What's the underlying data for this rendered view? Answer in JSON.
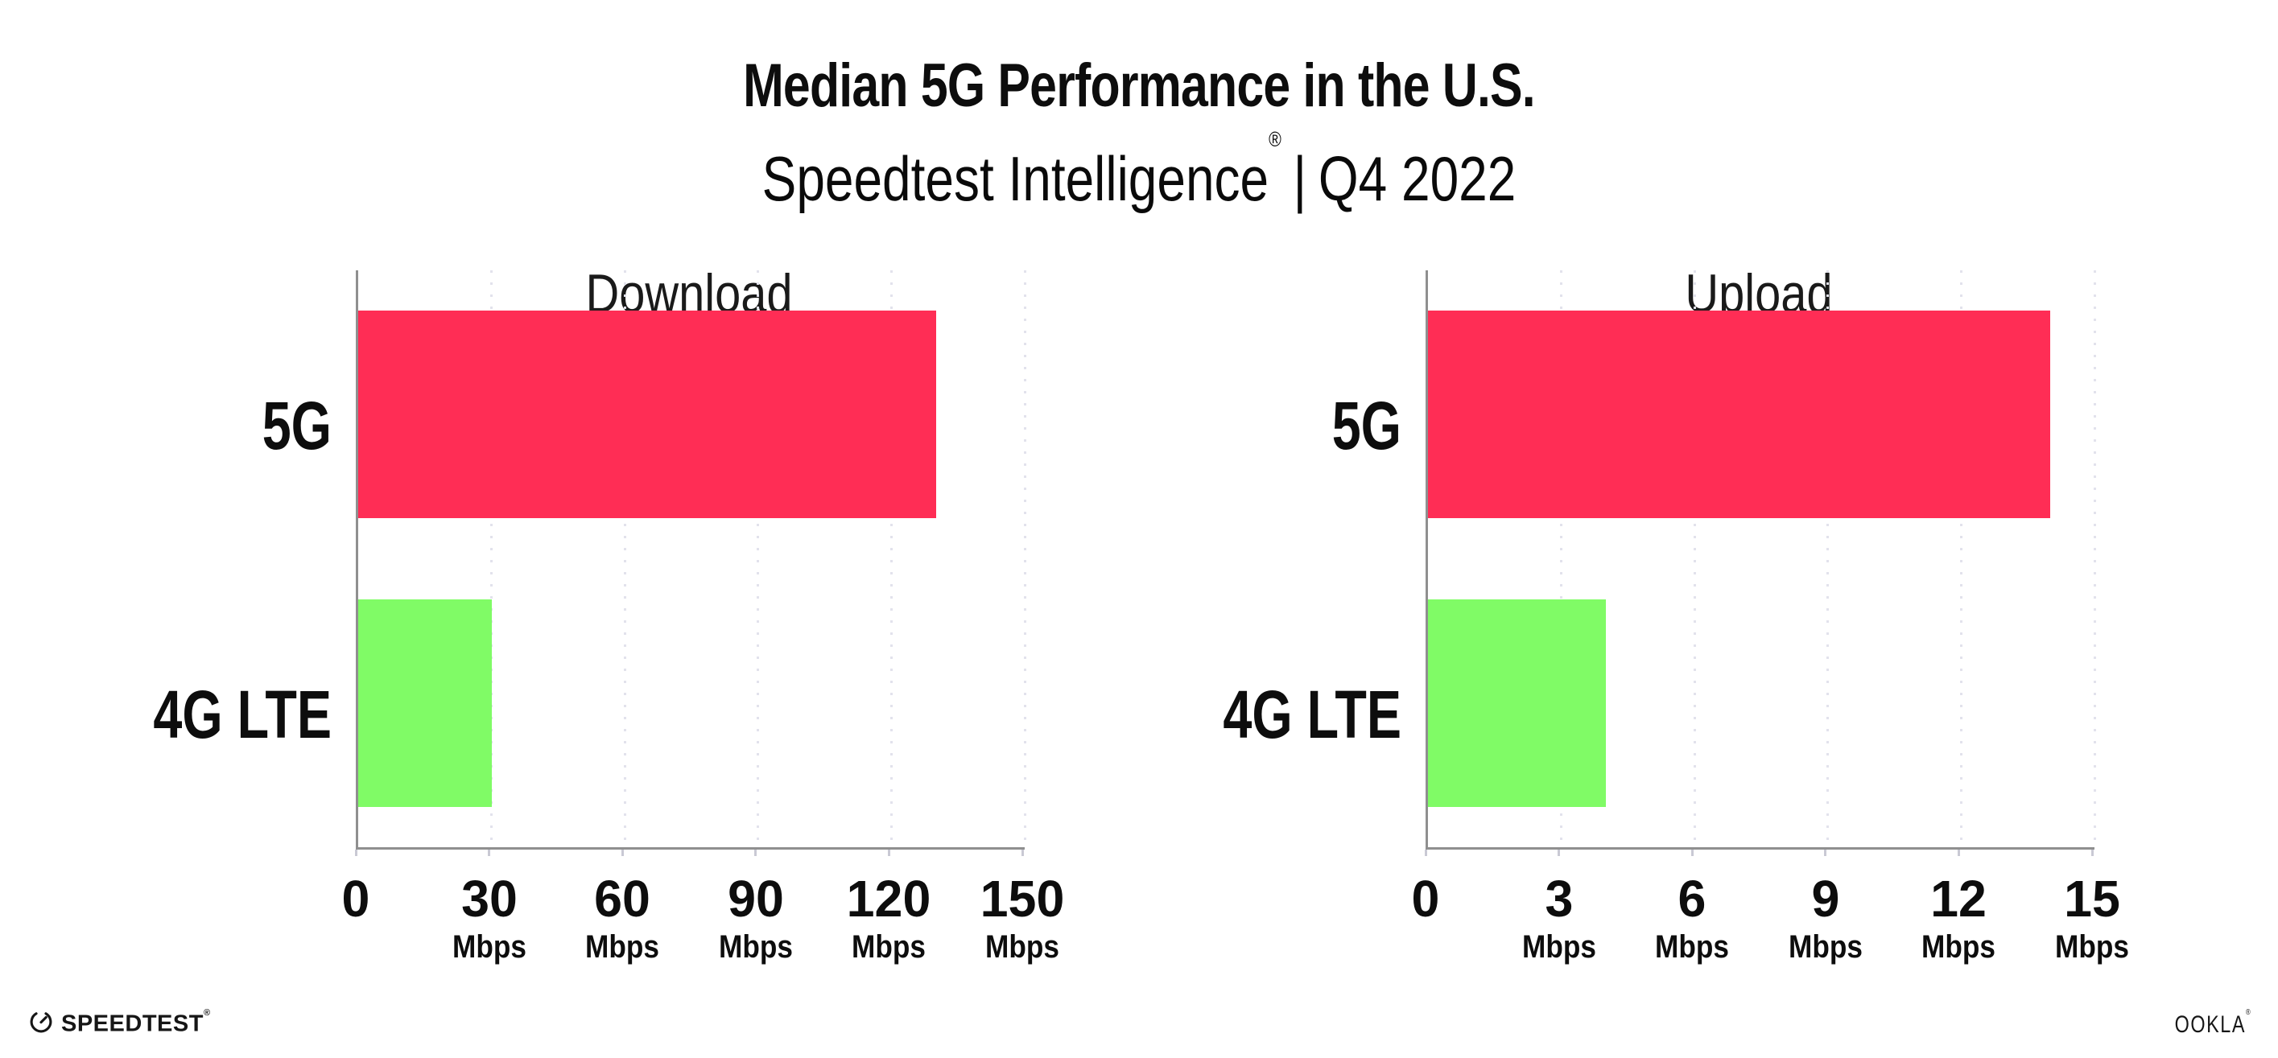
{
  "header": {
    "title": "Median 5G Performance in the U.S.",
    "subtitle": {
      "brand": "Speedtest Intelligence",
      "registered_mark": "®",
      "separator": "|",
      "period": "Q4 2022"
    }
  },
  "chart_data": [
    {
      "type": "bar",
      "orientation": "horizontal",
      "title": "Download",
      "categories": [
        "5G",
        "4G LTE"
      ],
      "values": [
        130,
        30
      ],
      "tick_unit": "Mbps",
      "xlim": [
        0,
        150
      ],
      "xticks": [
        0,
        30,
        60,
        90,
        120,
        150
      ],
      "bar_colors": [
        "#FF2D55",
        "#80FB66"
      ],
      "grid": "dotted-vertical",
      "legend": "none"
    },
    {
      "type": "bar",
      "orientation": "horizontal",
      "title": "Upload",
      "categories": [
        "5G",
        "4G LTE"
      ],
      "values": [
        14,
        4
      ],
      "tick_unit": "Mbps",
      "xlim": [
        0,
        15
      ],
      "xticks": [
        0,
        3,
        6,
        9,
        12,
        15
      ],
      "bar_colors": [
        "#FF2D55",
        "#80FB66"
      ],
      "grid": "dotted-vertical",
      "legend": "none"
    }
  ],
  "colors": {
    "bar_5g": "#FF2D55",
    "bar_4g_lte": "#80FB66",
    "gridline": "#E2E2EC",
    "axis": "#8F8F8F",
    "text": "#0D0D0D"
  },
  "footer": {
    "speedtest_logo_text": "SPEEDTEST",
    "speedtest_registered_mark": "®",
    "ookla_logo_text": "OOKLA",
    "ookla_registered_mark": "®"
  }
}
